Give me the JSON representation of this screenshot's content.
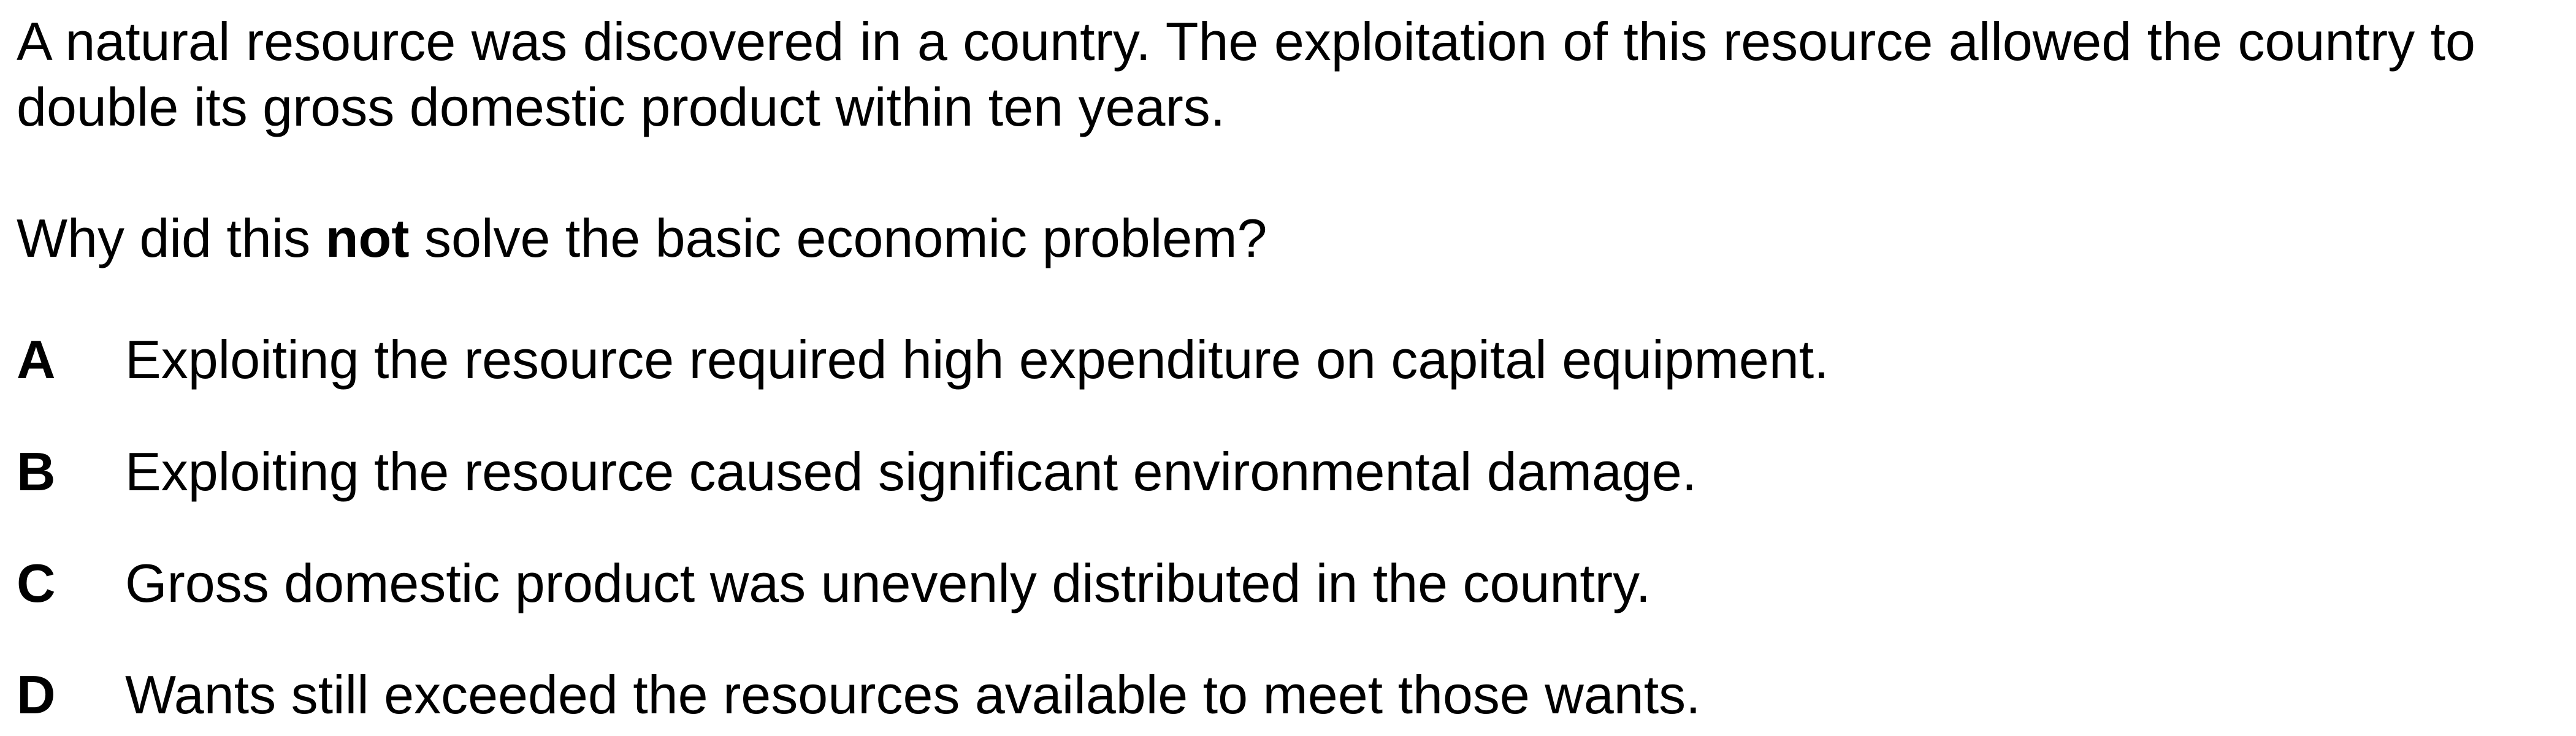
{
  "stem": "A natural resource was discovered in a country. The exploitation of this resource allowed the country to double its gross domestic product within ten years.",
  "question": {
    "before": "Why did this ",
    "emphasis": "not",
    "after": " solve the basic economic problem?"
  },
  "options": [
    {
      "letter": "A",
      "text": "Exploiting the resource required high expenditure on capital equipment."
    },
    {
      "letter": "B",
      "text": "Exploiting the resource caused significant environmental damage."
    },
    {
      "letter": "C",
      "text": "Gross domestic product was unevenly distributed in the country."
    },
    {
      "letter": "D",
      "text": "Wants still exceeded the resources available to meet those wants."
    }
  ]
}
